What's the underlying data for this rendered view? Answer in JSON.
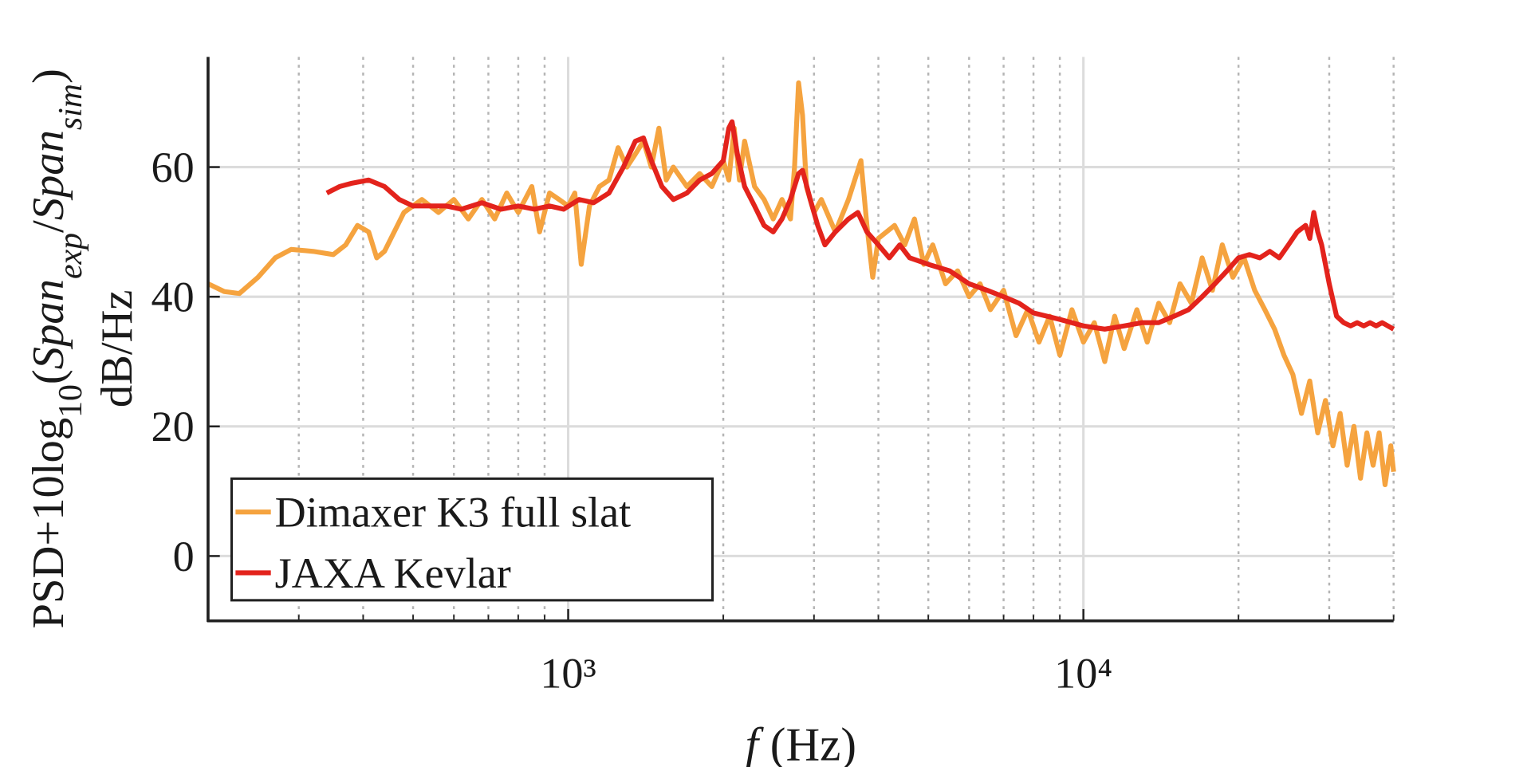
{
  "chart_data": {
    "type": "line",
    "ylabel": [
      [
        {
          "text": "PSD+10log",
          "style": "normal"
        },
        {
          "text": "10",
          "style": "sub"
        },
        {
          "text": "(",
          "style": "normal"
        },
        {
          "text": "Span",
          "style": "italic"
        },
        {
          "text": "exp",
          "style": "italic-sub"
        },
        {
          "text": "/",
          "style": "normal"
        },
        {
          "text": "Span",
          "style": "italic"
        },
        {
          "text": "sim",
          "style": "italic-sub"
        },
        {
          "text": ")",
          "style": "normal"
        }
      ],
      [
        {
          "text": "dB/Hz",
          "style": "normal"
        }
      ]
    ],
    "xlabel": [
      {
        "text": "f",
        "style": "italic"
      },
      {
        "text": " (Hz)",
        "style": "normal"
      }
    ],
    "xscale": "log",
    "xlim": [
      200,
      40000
    ],
    "ylim": [
      -10,
      77
    ],
    "xticks": [
      {
        "value": 1000,
        "label": "10³"
      },
      {
        "value": 10000,
        "label": "10⁴"
      }
    ],
    "xminorticks": [
      300,
      400,
      500,
      600,
      700,
      800,
      900,
      2000,
      3000,
      4000,
      5000,
      6000,
      7000,
      8000,
      9000,
      20000,
      30000,
      40000
    ],
    "yticks": [
      0,
      20,
      40,
      60
    ],
    "grid": true,
    "legend": "lower left",
    "series": [
      {
        "name": "Dimaxer K3 full slat",
        "color": "#f5a33f",
        "x": [
          200,
          215,
          230,
          250,
          270,
          290,
          320,
          350,
          370,
          390,
          410,
          425,
          440,
          480,
          520,
          560,
          600,
          640,
          680,
          720,
          760,
          800,
          850,
          880,
          920,
          960,
          1000,
          1030,
          1060,
          1100,
          1150,
          1200,
          1250,
          1300,
          1350,
          1400,
          1450,
          1500,
          1550,
          1600,
          1700,
          1800,
          1900,
          2000,
          2050,
          2100,
          2150,
          2200,
          2300,
          2400,
          2500,
          2600,
          2700,
          2750,
          2800,
          2850,
          2900,
          3000,
          3100,
          3300,
          3500,
          3700,
          3800,
          3900,
          4000,
          4300,
          4500,
          4700,
          4900,
          5100,
          5400,
          5700,
          6000,
          6300,
          6600,
          7000,
          7400,
          7800,
          8200,
          8600,
          9000,
          9500,
          10000,
          10500,
          11000,
          11500,
          12000,
          12700,
          13300,
          14000,
          14700,
          15400,
          16200,
          17000,
          17800,
          18600,
          19500,
          20500,
          21500,
          22500,
          23500,
          24500,
          25500,
          26500,
          27500,
          28500,
          29500,
          30500,
          31500,
          32500,
          33500,
          34500,
          35500,
          36500,
          37500,
          38500,
          39500,
          40000
        ],
        "values": [
          42,
          40.8,
          40.5,
          43,
          46,
          47.3,
          47,
          46.5,
          48,
          51,
          50,
          46,
          47,
          53,
          55,
          53,
          55,
          52,
          55,
          52,
          56,
          53,
          57,
          50,
          56,
          55,
          54,
          56,
          45,
          54,
          57,
          58,
          63,
          60,
          62,
          64,
          60,
          66,
          58,
          60,
          57,
          59,
          57,
          61,
          58,
          66,
          58,
          64,
          57,
          55,
          52,
          55,
          52,
          60,
          73,
          68,
          57,
          53,
          55,
          50,
          55,
          61,
          51,
          43,
          49,
          51,
          48,
          52,
          45,
          48,
          42,
          44,
          40,
          42,
          38,
          41,
          34,
          38,
          33,
          37,
          31,
          38,
          33,
          36,
          30,
          37,
          32,
          38,
          33,
          39,
          36,
          42,
          39,
          46,
          41,
          48,
          43,
          46,
          41,
          38,
          35,
          31,
          28,
          22,
          27,
          19,
          24,
          17,
          22,
          14,
          20,
          12,
          19,
          14,
          19,
          11,
          17,
          13
        ]
      },
      {
        "name": "JAXA Kevlar",
        "color": "#e3231c",
        "x": [
          340,
          360,
          380,
          410,
          440,
          470,
          500,
          540,
          580,
          620,
          680,
          740,
          800,
          860,
          920,
          980,
          1050,
          1120,
          1200,
          1280,
          1350,
          1400,
          1450,
          1520,
          1600,
          1700,
          1800,
          1900,
          2000,
          2050,
          2080,
          2130,
          2200,
          2300,
          2400,
          2500,
          2600,
          2700,
          2800,
          2850,
          2950,
          3050,
          3150,
          3300,
          3500,
          3650,
          3800,
          4000,
          4200,
          4400,
          4600,
          5000,
          5500,
          6000,
          6500,
          7000,
          7500,
          8000,
          8500,
          9000,
          10000,
          11000,
          12000,
          13000,
          14000,
          15000,
          16000,
          17000,
          18000,
          19000,
          20000,
          21000,
          22000,
          23000,
          24000,
          25000,
          26000,
          27000,
          27500,
          28000,
          28500,
          29000,
          30000,
          31000,
          32000,
          33000,
          34000,
          35000,
          36000,
          37000,
          38000,
          39000,
          40000
        ],
        "values": [
          56,
          57,
          57.5,
          58,
          57,
          55,
          54,
          54,
          54,
          53.5,
          54.5,
          53.5,
          54,
          53.5,
          54,
          53.5,
          55,
          54.5,
          56,
          60,
          64,
          64.5,
          61,
          57,
          55,
          56,
          58,
          59,
          61,
          66,
          67,
          62,
          57,
          54,
          51,
          50,
          52,
          55,
          59,
          59.5,
          55,
          51,
          48,
          50,
          52,
          53,
          50,
          48,
          46,
          48,
          46,
          45,
          44,
          42,
          41,
          40,
          39,
          37.5,
          37,
          36.5,
          35.5,
          35,
          35.5,
          36,
          36,
          37,
          38,
          40,
          42,
          44,
          46,
          46.5,
          46,
          47,
          46,
          48,
          50,
          51,
          49,
          53,
          50,
          48,
          42,
          37,
          36,
          35.5,
          36,
          35.5,
          36,
          35.5,
          36,
          35.5,
          35
        ]
      }
    ]
  }
}
